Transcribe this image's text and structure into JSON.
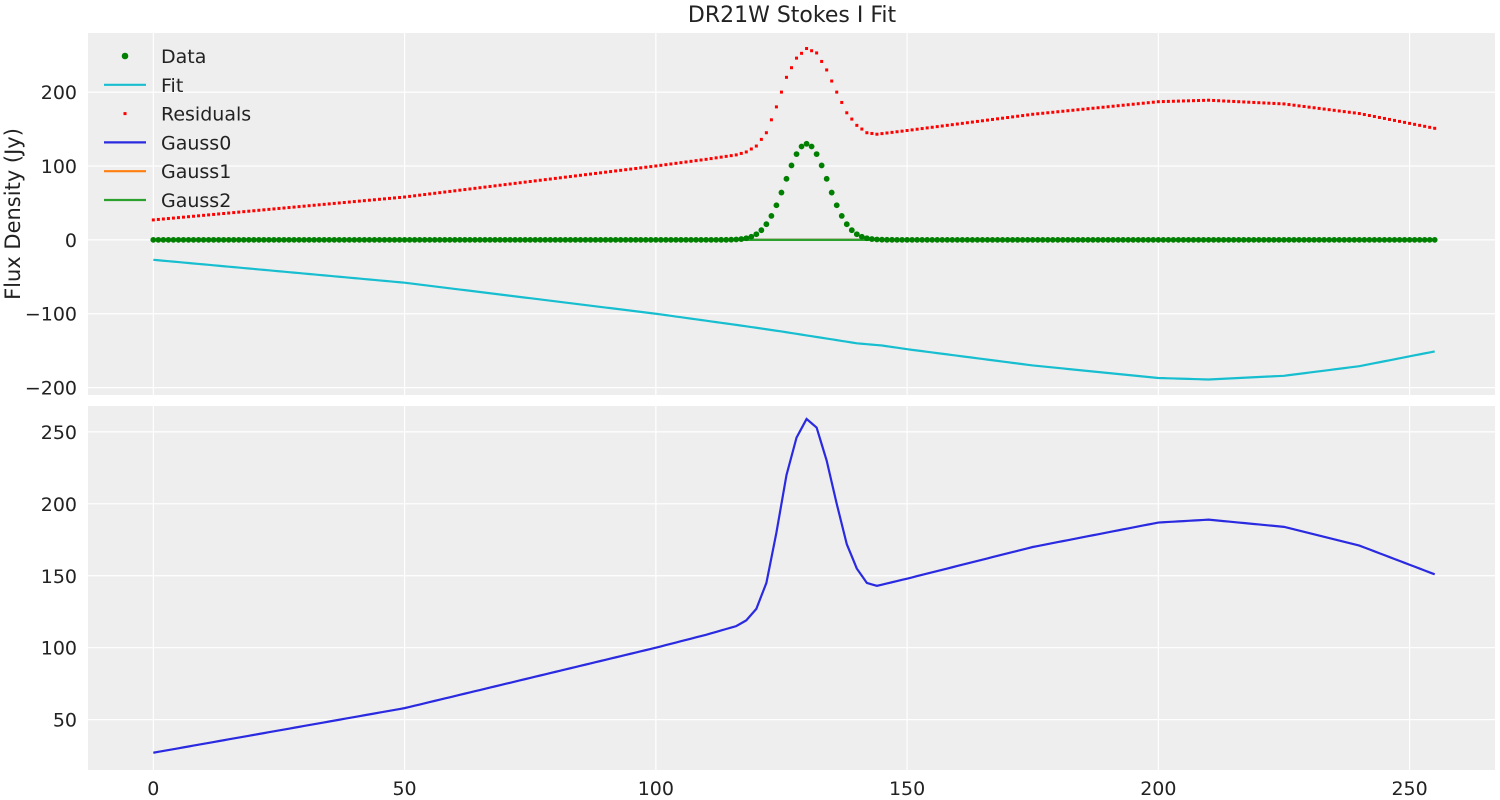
{
  "chart_data": [
    {
      "type": "scatter",
      "panel": "top",
      "title": "DR21W Stokes I Fit",
      "xlabel": "",
      "ylabel": "Flux Density (Jy)",
      "xlim": [
        -13,
        267
      ],
      "ylim": [
        -210,
        280
      ],
      "xticks": [
        0,
        50,
        100,
        150,
        200,
        250
      ],
      "yticks": [
        -200,
        -100,
        0,
        100,
        200
      ],
      "ytick_labels": [
        "−200",
        "−100",
        "0",
        "100",
        "200"
      ],
      "show_xtick_labels": false,
      "grid": true,
      "legend": {
        "placement": "top-left",
        "entries": [
          "Data",
          "Fit",
          "Residuals",
          "Gauss0",
          "Gauss1",
          "Gauss2"
        ]
      },
      "x_range": [
        0,
        255
      ],
      "series": [
        {
          "name": "Data",
          "kind": "scatter",
          "marker": "circle",
          "color": "#007f00",
          "model": "gaussian",
          "amplitude": 130,
          "center": 130,
          "sigma": 4.2,
          "offset": 0
        },
        {
          "name": "Fit",
          "kind": "line",
          "color": "#17becf",
          "points": [
            [
              0,
              -27
            ],
            [
              50,
              -58
            ],
            [
              100,
              -100
            ],
            [
              118,
              -117
            ],
            [
              125,
              -124
            ],
            [
              140,
              -140
            ],
            [
              145,
              -143
            ],
            [
              150,
              -148
            ],
            [
              175,
              -170
            ],
            [
              200,
              -187
            ],
            [
              210,
              -189
            ],
            [
              225,
              -184
            ],
            [
              240,
              -171
            ],
            [
              255,
              -151
            ]
          ]
        },
        {
          "name": "Residuals",
          "kind": "scatter",
          "marker": "square",
          "color": "#ff0000",
          "points": [
            [
              0,
              27
            ],
            [
              50,
              58
            ],
            [
              100,
              100
            ],
            [
              110,
              109
            ],
            [
              116,
              115
            ],
            [
              118,
              119
            ],
            [
              120,
              127
            ],
            [
              122,
              145
            ],
            [
              124,
              180
            ],
            [
              126,
              220
            ],
            [
              128,
              246
            ],
            [
              130,
              259
            ],
            [
              132,
              253
            ],
            [
              134,
              230
            ],
            [
              136,
              200
            ],
            [
              138,
              172
            ],
            [
              140,
              155
            ],
            [
              142,
              145
            ],
            [
              144,
              143
            ],
            [
              150,
              148
            ],
            [
              175,
              170
            ],
            [
              200,
              187
            ],
            [
              210,
              189
            ],
            [
              225,
              184
            ],
            [
              240,
              171
            ],
            [
              255,
              151
            ]
          ]
        },
        {
          "name": "Gauss0",
          "kind": "line",
          "color": "#2a2ae0",
          "model": "zero"
        },
        {
          "name": "Gauss1",
          "kind": "line",
          "color": "#ff7f0e",
          "model": "zero"
        },
        {
          "name": "Gauss2",
          "kind": "line",
          "color": "#2ca02c",
          "model": "zero"
        }
      ]
    },
    {
      "type": "line",
      "panel": "bottom",
      "xlim": [
        -13,
        267
      ],
      "ylim": [
        15,
        268
      ],
      "xticks": [
        0,
        50,
        100,
        150,
        200,
        250
      ],
      "yticks": [
        50,
        100,
        150,
        200,
        250
      ],
      "show_xtick_labels": true,
      "grid": true,
      "series": [
        {
          "name": "",
          "kind": "line",
          "color": "#2a2ae0",
          "points": [
            [
              0,
              27
            ],
            [
              50,
              58
            ],
            [
              100,
              100
            ],
            [
              110,
              109
            ],
            [
              116,
              115
            ],
            [
              118,
              119
            ],
            [
              120,
              127
            ],
            [
              122,
              145
            ],
            [
              124,
              180
            ],
            [
              126,
              220
            ],
            [
              128,
              246
            ],
            [
              130,
              259
            ],
            [
              132,
              253
            ],
            [
              134,
              230
            ],
            [
              136,
              200
            ],
            [
              138,
              172
            ],
            [
              140,
              155
            ],
            [
              142,
              145
            ],
            [
              144,
              143
            ],
            [
              150,
              148
            ],
            [
              175,
              170
            ],
            [
              200,
              187
            ],
            [
              210,
              189
            ],
            [
              225,
              184
            ],
            [
              240,
              171
            ],
            [
              255,
              151
            ]
          ]
        }
      ]
    }
  ]
}
